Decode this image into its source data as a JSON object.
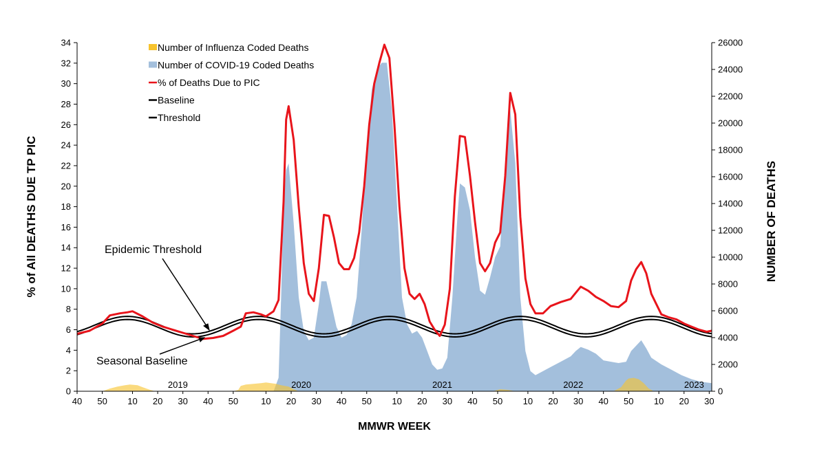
{
  "chart_data": {
    "type": "line",
    "xlabel": "MMWR WEEK",
    "ylabel_left": "% of All DEATHS DUE TP PIC",
    "ylabel_right": "NUMBER OF DEATHS",
    "ylim_left": [
      0,
      34
    ],
    "ylim_right": [
      0,
      26000
    ],
    "left_ticks": [
      0,
      2,
      4,
      6,
      8,
      10,
      12,
      14,
      16,
      18,
      20,
      22,
      24,
      26,
      28,
      30,
      32,
      34
    ],
    "right_ticks": [
      0,
      2000,
      4000,
      6000,
      8000,
      10000,
      12000,
      14000,
      16000,
      18000,
      20000,
      22000,
      24000,
      26000
    ],
    "x_week_labels": [
      "40",
      "50",
      "10",
      "20",
      "30",
      "40",
      "50",
      "10",
      "20",
      "30",
      "40",
      "50",
      "10",
      "20",
      "30",
      "40",
      "50",
      "10",
      "20",
      "30",
      "40",
      "50",
      "10",
      "20",
      "30"
    ],
    "x_week_index": [
      0,
      10,
      22,
      32,
      42,
      52,
      62,
      75,
      85,
      95,
      105,
      115,
      127,
      137,
      147,
      157,
      167,
      179,
      189,
      199,
      209,
      219,
      231,
      241,
      251
    ],
    "year_labels": [
      {
        "text": "2019",
        "week_index": 40
      },
      {
        "text": "2020",
        "week_index": 89
      },
      {
        "text": "2021",
        "week_index": 145
      },
      {
        "text": "2022",
        "week_index": 197
      },
      {
        "text": "2023",
        "week_index": 245
      }
    ],
    "grid": false,
    "legend_position": "top-left",
    "legend": [
      {
        "name": "Number of Influenza Coded Deaths",
        "symbol": "area",
        "color": "#f7c32e"
      },
      {
        "name": "Number of COVID-19 Coded Deaths",
        "symbol": "area",
        "color": "#a3bfdc"
      },
      {
        "name": "% of Deaths Due to PIC",
        "symbol": "line",
        "color": "#e8141b"
      },
      {
        "name": "Baseline",
        "symbol": "line",
        "color": "#000000"
      },
      {
        "name": "Threshold",
        "symbol": "line",
        "color": "#000000"
      }
    ],
    "annotations": [
      {
        "text": "Epidemic Threshold",
        "points_to": "threshold line, ~week index 52"
      },
      {
        "text": "Seasonal Baseline",
        "points_to": "baseline line, ~week index 51"
      }
    ],
    "series": [
      {
        "name": "% of Deaths Due to PIC",
        "axis": "left",
        "points": [
          [
            0,
            5.6
          ],
          [
            5,
            5.9
          ],
          [
            10,
            6.6
          ],
          [
            13,
            7.4
          ],
          [
            17,
            7.6
          ],
          [
            20,
            7.7
          ],
          [
            22,
            7.8
          ],
          [
            26,
            7.3
          ],
          [
            30,
            6.7
          ],
          [
            34,
            6.3
          ],
          [
            38,
            6.0
          ],
          [
            42,
            5.7
          ],
          [
            46,
            5.4
          ],
          [
            50,
            5.1
          ],
          [
            54,
            5.2
          ],
          [
            58,
            5.4
          ],
          [
            62,
            5.9
          ],
          [
            65,
            6.3
          ],
          [
            67,
            7.6
          ],
          [
            70,
            7.7
          ],
          [
            73,
            7.5
          ],
          [
            75,
            7.3
          ],
          [
            78,
            7.8
          ],
          [
            80,
            8.9
          ],
          [
            82,
            18.5
          ],
          [
            83,
            26.5
          ],
          [
            84,
            27.8
          ],
          [
            86,
            24.5
          ],
          [
            88,
            18.0
          ],
          [
            90,
            12.5
          ],
          [
            92,
            9.5
          ],
          [
            94,
            8.8
          ],
          [
            96,
            12.0
          ],
          [
            98,
            17.2
          ],
          [
            100,
            17.1
          ],
          [
            102,
            15.0
          ],
          [
            104,
            12.5
          ],
          [
            106,
            11.9
          ],
          [
            108,
            11.9
          ],
          [
            110,
            13.0
          ],
          [
            112,
            15.5
          ],
          [
            114,
            20.0
          ],
          [
            116,
            26.0
          ],
          [
            118,
            30.0
          ],
          [
            120,
            32.0
          ],
          [
            122,
            33.8
          ],
          [
            124,
            32.5
          ],
          [
            126,
            26.0
          ],
          [
            128,
            18.0
          ],
          [
            130,
            12.0
          ],
          [
            132,
            9.5
          ],
          [
            134,
            9.0
          ],
          [
            136,
            9.5
          ],
          [
            138,
            8.5
          ],
          [
            140,
            6.8
          ],
          [
            142,
            6.0
          ],
          [
            144,
            5.4
          ],
          [
            146,
            6.5
          ],
          [
            148,
            10.0
          ],
          [
            150,
            19.0
          ],
          [
            152,
            24.9
          ],
          [
            154,
            24.8
          ],
          [
            156,
            21.0
          ],
          [
            158,
            16.5
          ],
          [
            160,
            12.5
          ],
          [
            162,
            11.7
          ],
          [
            164,
            12.5
          ],
          [
            166,
            14.5
          ],
          [
            168,
            15.5
          ],
          [
            170,
            21.0
          ],
          [
            172,
            29.1
          ],
          [
            174,
            27.0
          ],
          [
            176,
            17.0
          ],
          [
            178,
            11.0
          ],
          [
            180,
            8.5
          ],
          [
            182,
            7.6
          ],
          [
            185,
            7.6
          ],
          [
            188,
            8.3
          ],
          [
            192,
            8.7
          ],
          [
            196,
            9.0
          ],
          [
            200,
            10.2
          ],
          [
            203,
            9.8
          ],
          [
            206,
            9.2
          ],
          [
            209,
            8.8
          ],
          [
            212,
            8.3
          ],
          [
            215,
            8.2
          ],
          [
            218,
            8.8
          ],
          [
            220,
            10.8
          ],
          [
            222,
            11.9
          ],
          [
            224,
            12.6
          ],
          [
            226,
            11.5
          ],
          [
            228,
            9.5
          ],
          [
            230,
            8.5
          ],
          [
            232,
            7.5
          ],
          [
            235,
            7.2
          ],
          [
            238,
            7.0
          ],
          [
            241,
            6.6
          ],
          [
            244,
            6.3
          ],
          [
            247,
            6.0
          ],
          [
            250,
            5.8
          ],
          [
            252,
            5.9
          ]
        ]
      },
      {
        "name": "Number of COVID-19 Coded Deaths",
        "axis": "right",
        "points": [
          [
            0,
            0
          ],
          [
            78,
            0
          ],
          [
            80,
            1000
          ],
          [
            81,
            7000
          ],
          [
            82,
            14000
          ],
          [
            83,
            16500
          ],
          [
            84,
            17000
          ],
          [
            86,
            12500
          ],
          [
            88,
            7000
          ],
          [
            90,
            4500
          ],
          [
            92,
            3800
          ],
          [
            94,
            4000
          ],
          [
            96,
            6500
          ],
          [
            97,
            8200
          ],
          [
            99,
            8200
          ],
          [
            101,
            6500
          ],
          [
            103,
            4800
          ],
          [
            105,
            4000
          ],
          [
            107,
            4200
          ],
          [
            109,
            5000
          ],
          [
            111,
            7000
          ],
          [
            113,
            12000
          ],
          [
            115,
            18000
          ],
          [
            117,
            22500
          ],
          [
            119,
            24000
          ],
          [
            121,
            24500
          ],
          [
            123,
            24500
          ],
          [
            125,
            21000
          ],
          [
            127,
            14000
          ],
          [
            129,
            7000
          ],
          [
            131,
            5000
          ],
          [
            133,
            4300
          ],
          [
            135,
            4500
          ],
          [
            137,
            4000
          ],
          [
            139,
            3000
          ],
          [
            141,
            2000
          ],
          [
            143,
            1600
          ],
          [
            145,
            1700
          ],
          [
            147,
            2500
          ],
          [
            149,
            7000
          ],
          [
            151,
            13000
          ],
          [
            152,
            15500
          ],
          [
            154,
            15200
          ],
          [
            156,
            13500
          ],
          [
            158,
            10000
          ],
          [
            160,
            7500
          ],
          [
            162,
            7200
          ],
          [
            164,
            8500
          ],
          [
            166,
            10000
          ],
          [
            168,
            10800
          ],
          [
            170,
            17000
          ],
          [
            172,
            21000
          ],
          [
            174,
            17000
          ],
          [
            176,
            7000
          ],
          [
            178,
            3000
          ],
          [
            180,
            1500
          ],
          [
            182,
            1200
          ],
          [
            185,
            1500
          ],
          [
            188,
            1800
          ],
          [
            192,
            2200
          ],
          [
            196,
            2600
          ],
          [
            198,
            3000
          ],
          [
            200,
            3300
          ],
          [
            203,
            3100
          ],
          [
            206,
            2800
          ],
          [
            209,
            2300
          ],
          [
            212,
            2200
          ],
          [
            215,
            2100
          ],
          [
            218,
            2200
          ],
          [
            220,
            3000
          ],
          [
            222,
            3400
          ],
          [
            224,
            3800
          ],
          [
            226,
            3200
          ],
          [
            228,
            2500
          ],
          [
            232,
            2000
          ],
          [
            236,
            1600
          ],
          [
            240,
            1200
          ],
          [
            244,
            900
          ],
          [
            248,
            700
          ],
          [
            252,
            600
          ]
        ]
      },
      {
        "name": "Number of Influenza Coded Deaths",
        "axis": "right",
        "points": [
          [
            0,
            0
          ],
          [
            10,
            0
          ],
          [
            13,
            200
          ],
          [
            16,
            350
          ],
          [
            19,
            450
          ],
          [
            21,
            500
          ],
          [
            24,
            450
          ],
          [
            26,
            300
          ],
          [
            29,
            100
          ],
          [
            31,
            0
          ],
          [
            62,
            0
          ],
          [
            64,
            100
          ],
          [
            65,
            400
          ],
          [
            67,
            500
          ],
          [
            70,
            550
          ],
          [
            73,
            600
          ],
          [
            75,
            650
          ],
          [
            77,
            600
          ],
          [
            79,
            550
          ],
          [
            81,
            450
          ],
          [
            84,
            350
          ],
          [
            86,
            150
          ],
          [
            88,
            0
          ],
          [
            165,
            0
          ],
          [
            168,
            150
          ],
          [
            171,
            100
          ],
          [
            174,
            0
          ],
          [
            213,
            0
          ],
          [
            216,
            300
          ],
          [
            218,
            800
          ],
          [
            219,
            950
          ],
          [
            221,
            1000
          ],
          [
            223,
            900
          ],
          [
            225,
            600
          ],
          [
            227,
            200
          ],
          [
            229,
            0
          ],
          [
            252,
            0
          ]
        ]
      },
      {
        "name": "Baseline",
        "axis": "left",
        "function": "sinusoid",
        "mean": 6.15,
        "amplitude": 0.85,
        "period_weeks": 52,
        "peak_week_index": 20
      },
      {
        "name": "Threshold",
        "axis": "left",
        "function": "sinusoid",
        "mean": 6.45,
        "amplitude": 0.85,
        "period_weeks": 52,
        "peak_week_index": 20
      }
    ]
  }
}
